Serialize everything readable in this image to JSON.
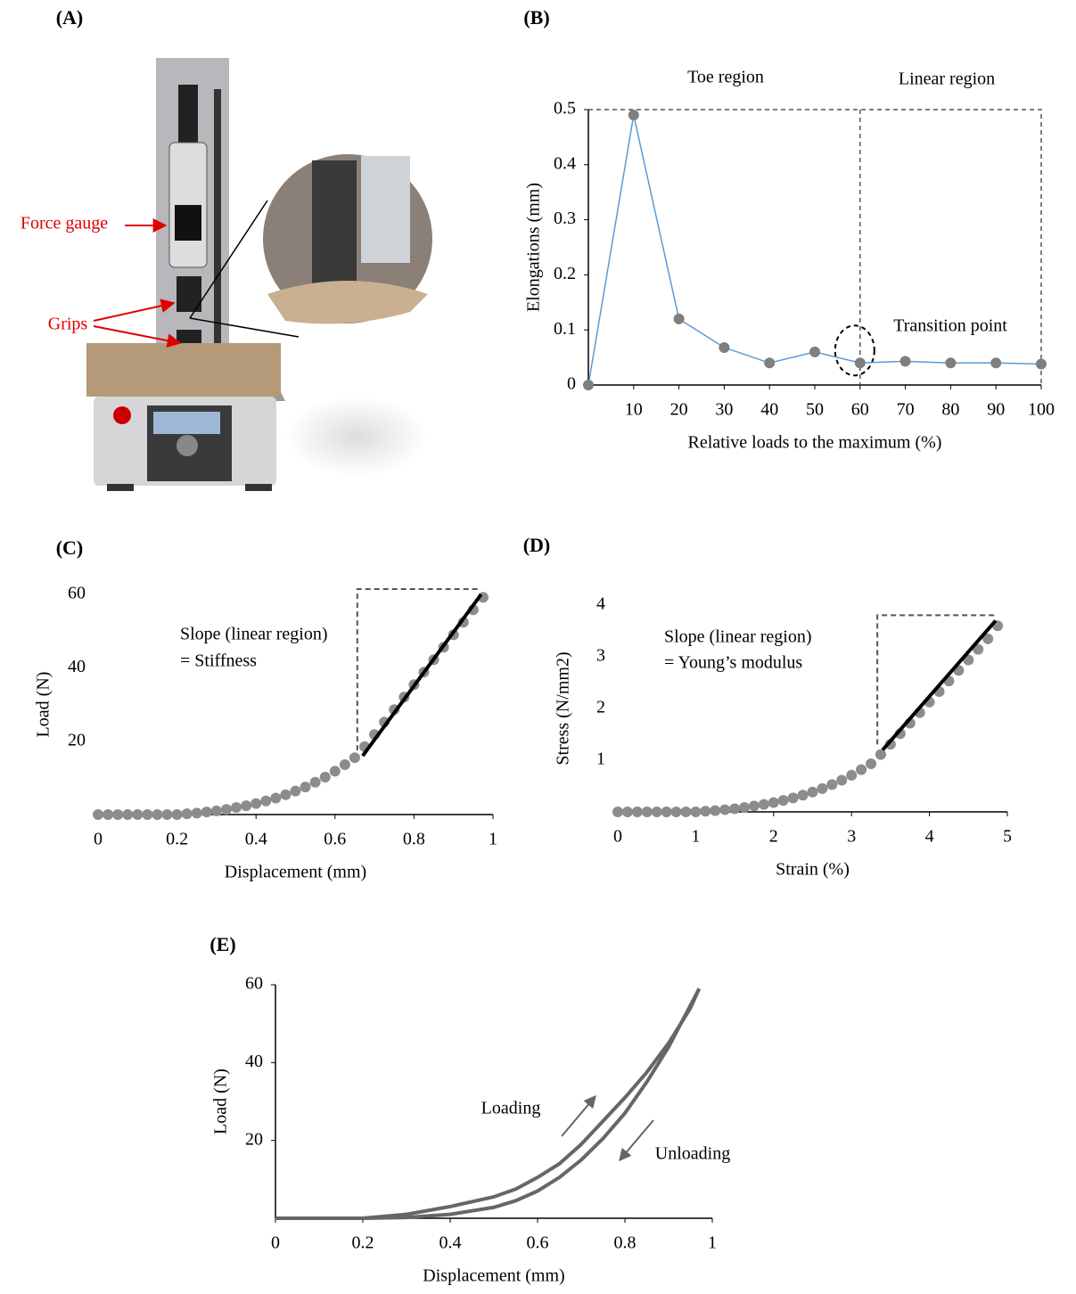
{
  "chart_data": [
    {
      "type": "image",
      "panel": "(A)",
      "annotations": [
        "Force gauge",
        "Grips"
      ]
    },
    {
      "type": "line",
      "panel": "(B)",
      "x_label": "Relative loads to the maximum (%)",
      "y_label": "Elongations  (mm)",
      "x": [
        0,
        10,
        20,
        30,
        40,
        50,
        60,
        70,
        80,
        90,
        100
      ],
      "series": [
        {
          "values": [
            0,
            0.49,
            0.12,
            0.068,
            0.04,
            0.06,
            0.04,
            0.043,
            0.04,
            0.04,
            0.038
          ],
          "color": "#5b9bd5",
          "marker_color": "#7f7f7f"
        }
      ],
      "xlim": [
        0,
        100
      ],
      "xticks": [
        10,
        20,
        30,
        40,
        50,
        60,
        70,
        80,
        90,
        100
      ],
      "ylim": [
        0,
        0.5
      ],
      "yticks": [
        0,
        0.1,
        0.2,
        0.3,
        0.4,
        0.5
      ],
      "y_axis_line": true,
      "annotations": [
        "Toe region",
        "Linear region",
        "Transition point"
      ]
    },
    {
      "type": "scatter",
      "panel": "(C)",
      "x_label": "Displacement (mm)",
      "y_label": "Load (N)",
      "x": [
        0,
        0.025,
        0.05,
        0.075,
        0.1,
        0.125,
        0.15,
        0.175,
        0.2,
        0.225,
        0.25,
        0.275,
        0.3,
        0.325,
        0.35,
        0.375,
        0.4,
        0.425,
        0.45,
        0.475,
        0.5,
        0.525,
        0.55,
        0.575,
        0.6,
        0.625,
        0.65,
        0.675,
        0.7,
        0.725,
        0.75,
        0.775,
        0.8,
        0.825,
        0.85,
        0.875,
        0.9,
        0.925,
        0.95,
        0.975
      ],
      "values": [
        0,
        0,
        0,
        0,
        0,
        0,
        0,
        0,
        0,
        0.2,
        0.4,
        0.7,
        1,
        1.4,
        1.9,
        2.4,
        3,
        3.7,
        4.5,
        5.4,
        6.4,
        7.5,
        8.8,
        10.2,
        11.8,
        13.6,
        15.5,
        18.5,
        21.8,
        25.2,
        28.6,
        32,
        35.4,
        38.8,
        42.2,
        45.6,
        49,
        52.4,
        55.8,
        59.2
      ],
      "color": "#8c8c8c",
      "fit": {
        "x": [
          0.67,
          0.97
        ],
        "values": [
          16,
          60
        ],
        "color": "#000000"
      },
      "xlim": [
        0,
        1
      ],
      "xticks": [
        0,
        0.2,
        0.4,
        0.6,
        0.8,
        1
      ],
      "ylim": [
        0,
        60
      ],
      "yticks": [
        20,
        40,
        60
      ],
      "y_axis_line": false,
      "annotations": [
        "Slope (linear region)",
        "= Stiffness"
      ]
    },
    {
      "type": "scatter",
      "panel": "(D)",
      "x_label": "Strain (%)",
      "y_label": "Stress (N/mm2)",
      "x": [
        0,
        0.125,
        0.25,
        0.375,
        0.5,
        0.625,
        0.75,
        0.875,
        1,
        1.125,
        1.25,
        1.375,
        1.5,
        1.625,
        1.75,
        1.875,
        2,
        2.125,
        2.25,
        2.375,
        2.5,
        2.625,
        2.75,
        2.875,
        3,
        3.125,
        3.25,
        3.375,
        3.5,
        3.625,
        3.75,
        3.875,
        4,
        4.125,
        4.25,
        4.375,
        4.5,
        4.625,
        4.75,
        4.875
      ],
      "values": [
        0,
        0,
        0,
        0,
        0,
        0,
        0,
        0,
        0,
        0.012,
        0.024,
        0.042,
        0.06,
        0.084,
        0.114,
        0.144,
        0.18,
        0.222,
        0.27,
        0.324,
        0.384,
        0.45,
        0.528,
        0.612,
        0.708,
        0.816,
        0.93,
        1.11,
        1.308,
        1.512,
        1.716,
        1.92,
        2.124,
        2.328,
        2.532,
        2.736,
        2.94,
        3.144,
        3.348,
        3.6
      ],
      "color": "#8c8c8c",
      "fit": {
        "x": [
          3.4,
          4.85
        ],
        "values": [
          1.2,
          3.7
        ],
        "color": "#000000"
      },
      "xlim": [
        0,
        5
      ],
      "xticks": [
        0,
        1,
        2,
        3,
        4,
        5
      ],
      "ylim": [
        0,
        4
      ],
      "yticks": [
        1,
        2,
        3,
        4
      ],
      "y_axis_line": false,
      "annotations": [
        "Slope (linear region)",
        "= Young’s modulus"
      ]
    },
    {
      "type": "curves",
      "panel": "(E)",
      "x_label": "Displacement (mm)",
      "y_label": "Load (N)",
      "series": [
        {
          "name": "Loading",
          "color": "#666666",
          "x": [
            0,
            0.2,
            0.3,
            0.4,
            0.5,
            0.55,
            0.6,
            0.65,
            0.7,
            0.75,
            0.8,
            0.85,
            0.9,
            0.95,
            0.97
          ],
          "values": [
            0,
            0,
            1,
            3,
            5.5,
            7.5,
            10.5,
            14,
            19,
            25,
            31,
            37.5,
            45,
            54,
            59
          ]
        },
        {
          "name": "Unloading",
          "color": "#666666",
          "x": [
            0.97,
            0.9,
            0.85,
            0.8,
            0.75,
            0.7,
            0.65,
            0.6,
            0.55,
            0.5,
            0.4,
            0.3,
            0.2,
            0
          ],
          "values": [
            59,
            44,
            35,
            27,
            20.5,
            15,
            10.5,
            7,
            4.5,
            2.8,
            1,
            0.2,
            0,
            0
          ]
        }
      ],
      "xlim": [
        0,
        1
      ],
      "xticks": [
        0,
        0.2,
        0.4,
        0.6,
        0.8,
        1
      ],
      "ylim": [
        0,
        60
      ],
      "yticks": [
        20,
        40,
        60
      ],
      "y_axis_line": true
    }
  ]
}
